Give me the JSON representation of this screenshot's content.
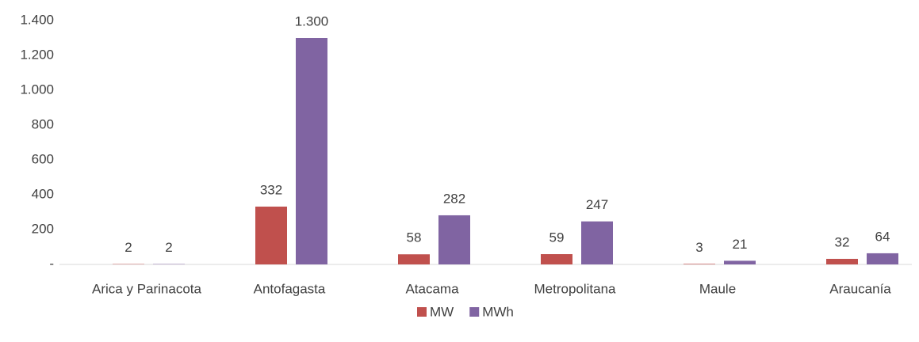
{
  "chart_data": {
    "type": "bar",
    "categories": [
      "Arica y Parinacota",
      "Antofagasta",
      "Atacama",
      "Metropolitana",
      "Maule",
      "Araucanía"
    ],
    "series": [
      {
        "name": "MW",
        "color": "#c0504d",
        "values": [
          2,
          332,
          58,
          59,
          3,
          32
        ],
        "value_labels": [
          "2",
          "332",
          "58",
          "59",
          "3",
          "32"
        ]
      },
      {
        "name": "MWh",
        "color": "#8064a2",
        "values": [
          2,
          1300,
          282,
          247,
          21,
          64
        ],
        "value_labels": [
          "2",
          "1.300",
          "282",
          "247",
          "21",
          "64"
        ]
      }
    ],
    "ylim": [
      0,
      1400
    ],
    "yticks": [
      {
        "value": 0,
        "label": "-"
      },
      200,
      400,
      600,
      800,
      {
        "value": 1000,
        "label": "1.000"
      },
      {
        "value": 1200,
        "label": "1.200"
      },
      {
        "value": 1400,
        "label": "1.400"
      }
    ],
    "grid": false,
    "legend": "bottom"
  }
}
